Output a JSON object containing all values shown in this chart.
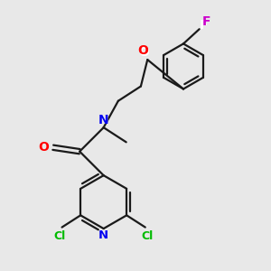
{
  "bg_color": "#e8e8e8",
  "bond_color": "#1a1a1a",
  "atom_colors": {
    "N": "#0000ee",
    "O": "#ff0000",
    "Cl": "#00bb00",
    "F": "#cc00cc"
  },
  "figsize": [
    3.0,
    3.0
  ],
  "dpi": 100,
  "xlim": [
    0,
    10
  ],
  "ylim": [
    0,
    10
  ]
}
